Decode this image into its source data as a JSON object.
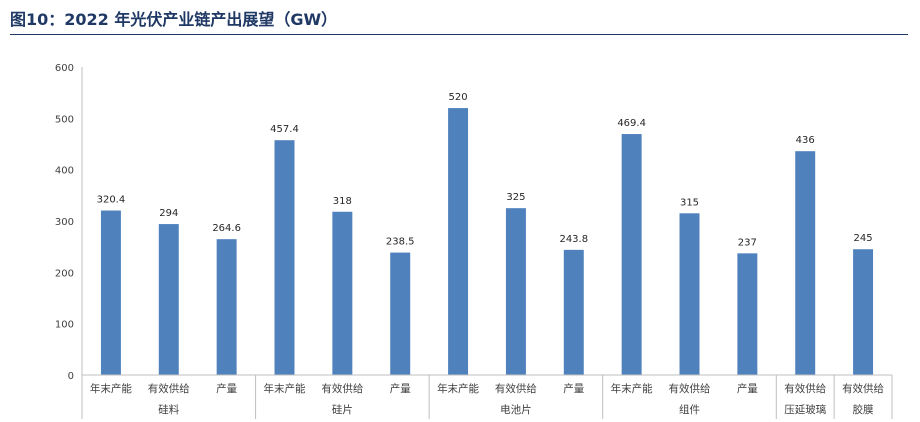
{
  "figure": {
    "title": "图10：2022 年光伏产业链产出展望（GW）"
  },
  "chart_data": {
    "type": "bar",
    "title": "",
    "xlabel": "",
    "ylabel": "",
    "ylim": [
      0,
      600
    ],
    "yticks": [
      0,
      100,
      200,
      300,
      400,
      500,
      600
    ],
    "grid": false,
    "bar_color": "#4f81bd",
    "groups": [
      {
        "name": "硅料",
        "bars": [
          {
            "label": "年末产能",
            "value": 320.4,
            "value_label": "320.4"
          },
          {
            "label": "有效供给",
            "value": 294,
            "value_label": "294"
          },
          {
            "label": "产量",
            "value": 264.6,
            "value_label": "264.6"
          }
        ]
      },
      {
        "name": "硅片",
        "bars": [
          {
            "label": "年末产能",
            "value": 457.4,
            "value_label": "457.4"
          },
          {
            "label": "有效供给",
            "value": 318,
            "value_label": "318"
          },
          {
            "label": "产量",
            "value": 238.5,
            "value_label": "238.5"
          }
        ]
      },
      {
        "name": "电池片",
        "bars": [
          {
            "label": "年末产能",
            "value": 520,
            "value_label": "520"
          },
          {
            "label": "有效供给",
            "value": 325,
            "value_label": "325"
          },
          {
            "label": "产量",
            "value": 243.8,
            "value_label": "243.8"
          }
        ]
      },
      {
        "name": "组件",
        "bars": [
          {
            "label": "年末产能",
            "value": 469.4,
            "value_label": "469.4"
          },
          {
            "label": "有效供给",
            "value": 315,
            "value_label": "315"
          },
          {
            "label": "产量",
            "value": 237,
            "value_label": "237"
          }
        ]
      },
      {
        "name": "压延玻璃",
        "bars": [
          {
            "label": "有效供给",
            "value": 436,
            "value_label": "436"
          }
        ]
      },
      {
        "name": "胶膜",
        "bars": [
          {
            "label": "有效供给",
            "value": 245,
            "value_label": "245"
          }
        ]
      }
    ]
  }
}
